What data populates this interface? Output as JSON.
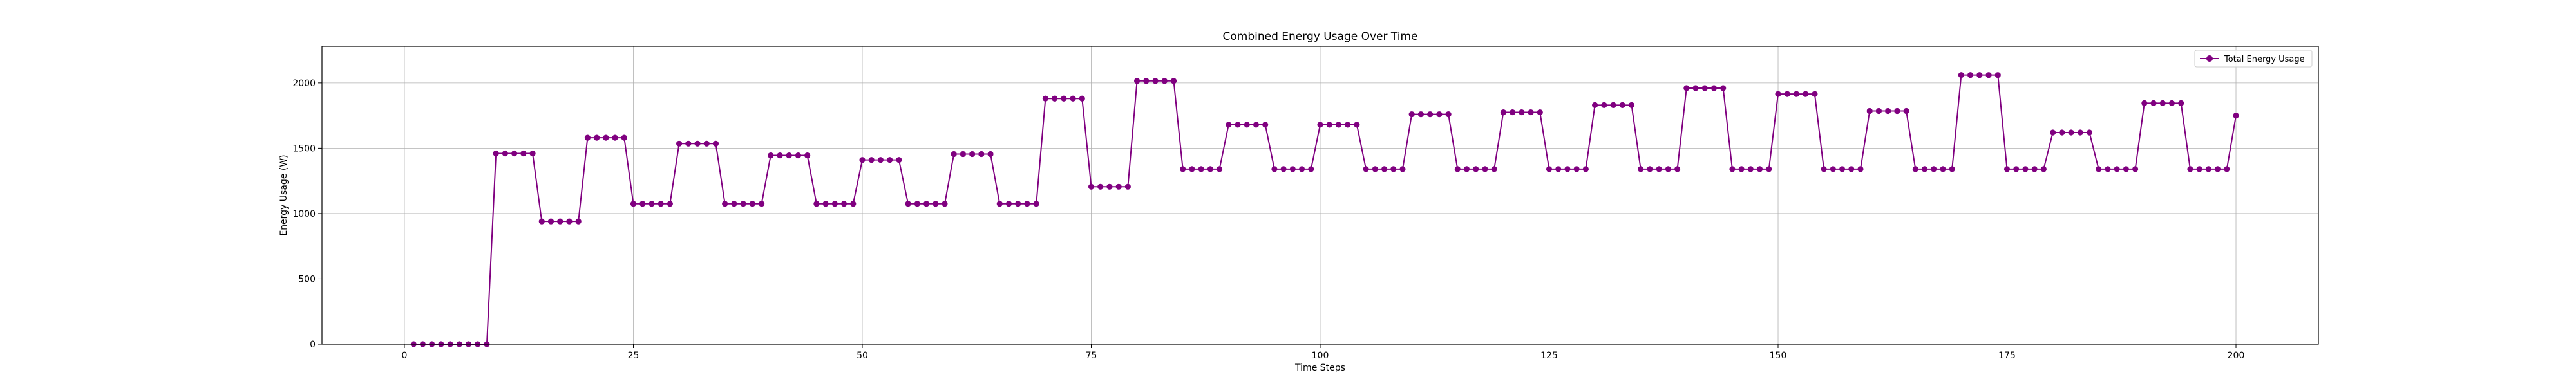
{
  "chart_data": {
    "type": "line",
    "title": "Combined Energy Usage Over Time",
    "xlabel": "Time Steps",
    "ylabel": "Energy Usage (W)",
    "xlim": [
      -9,
      209
    ],
    "ylim": [
      0,
      2280
    ],
    "xticks": [
      0,
      25,
      50,
      75,
      100,
      125,
      150,
      175,
      200
    ],
    "yticks": [
      0,
      500,
      1000,
      1500,
      2000
    ],
    "grid": true,
    "legend_position": "top-right",
    "colors": {
      "series": "#800080"
    },
    "series": [
      {
        "name": "Total Energy Usage",
        "x_start": 1,
        "values": [
          0,
          0,
          0,
          0,
          0,
          0,
          0,
          0,
          0,
          1460,
          1460,
          1460,
          1460,
          1460,
          940,
          940,
          940,
          940,
          940,
          1580,
          1580,
          1580,
          1580,
          1580,
          1075,
          1075,
          1075,
          1075,
          1075,
          1535,
          1535,
          1535,
          1535,
          1535,
          1075,
          1075,
          1075,
          1075,
          1075,
          1445,
          1445,
          1445,
          1445,
          1445,
          1075,
          1075,
          1075,
          1075,
          1075,
          1410,
          1410,
          1410,
          1410,
          1410,
          1075,
          1075,
          1075,
          1075,
          1075,
          1455,
          1455,
          1455,
          1455,
          1455,
          1075,
          1075,
          1075,
          1075,
          1075,
          1880,
          1880,
          1880,
          1880,
          1880,
          1205,
          1205,
          1205,
          1205,
          1205,
          2015,
          2015,
          2015,
          2015,
          2015,
          1340,
          1340,
          1340,
          1340,
          1340,
          1680,
          1680,
          1680,
          1680,
          1680,
          1340,
          1340,
          1340,
          1340,
          1340,
          1680,
          1680,
          1680,
          1680,
          1680,
          1340,
          1340,
          1340,
          1340,
          1340,
          1760,
          1760,
          1760,
          1760,
          1760,
          1340,
          1340,
          1340,
          1340,
          1340,
          1775,
          1775,
          1775,
          1775,
          1775,
          1340,
          1340,
          1340,
          1340,
          1340,
          1830,
          1830,
          1830,
          1830,
          1830,
          1340,
          1340,
          1340,
          1340,
          1340,
          1960,
          1960,
          1960,
          1960,
          1960,
          1340,
          1340,
          1340,
          1340,
          1340,
          1915,
          1915,
          1915,
          1915,
          1915,
          1340,
          1340,
          1340,
          1340,
          1340,
          1785,
          1785,
          1785,
          1785,
          1785,
          1340,
          1340,
          1340,
          1340,
          1340,
          2060,
          2060,
          2060,
          2060,
          2060,
          1340,
          1340,
          1340,
          1340,
          1340,
          1620,
          1620,
          1620,
          1620,
          1620,
          1340,
          1340,
          1340,
          1340,
          1340,
          1845,
          1845,
          1845,
          1845,
          1845,
          1340,
          1340,
          1340,
          1340,
          1340,
          1750
        ]
      }
    ]
  }
}
